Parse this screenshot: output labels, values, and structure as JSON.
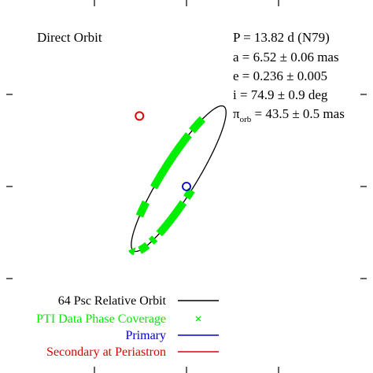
{
  "chart_data": {
    "type": "line",
    "panel_title": "Direct Orbit",
    "parameters": [
      {
        "id": "period",
        "text": "P = 13.82 d (N79)"
      },
      {
        "id": "semimajor",
        "text": "a = 6.52 ± 0.06 mas"
      },
      {
        "id": "eccentricity",
        "text": "e = 0.236 ± 0.005"
      },
      {
        "id": "inclination",
        "text": "i = 74.9 ± 0.9 deg"
      },
      {
        "id": "parallax",
        "sym": "π",
        "sub": "orb",
        "rest": " = 43.5 ± 0.5 mas"
      }
    ],
    "legend": [
      {
        "label": "64 Psc Relative Orbit",
        "color": "#000000",
        "marker": "line"
      },
      {
        "label": "PTI Data Phase Coverage",
        "color": "#00ee00",
        "marker": "x"
      },
      {
        "label": "Primary",
        "color": "#0000cc",
        "marker": "line"
      },
      {
        "label": "Secondary at Periastron",
        "color": "#dd0000",
        "marker": "line"
      }
    ],
    "xlim": [
      -7,
      7
    ],
    "ylim": [
      -7,
      7
    ],
    "grid": false,
    "orbit": {
      "center": [
        -0.6,
        0.6
      ],
      "semi_major": 6.52,
      "semi_minor": 1.3,
      "major_axis_angle_deg": 58
    },
    "primary": {
      "x": 0,
      "y": 0
    },
    "periastron": {
      "x": -3.6,
      "y": 5.4
    },
    "phase_coverage_deg": [
      [
        42,
        56
      ],
      [
        60,
        104
      ],
      [
        116,
        128
      ],
      [
        172,
        184
      ],
      [
        197,
        211
      ],
      [
        217,
        222
      ],
      [
        228,
        258
      ],
      [
        262,
        268
      ]
    ]
  },
  "colors": {
    "orbit": "#000000",
    "coverage": "#00ee00",
    "primary": "#0000cc",
    "periastron": "#dd0000"
  }
}
